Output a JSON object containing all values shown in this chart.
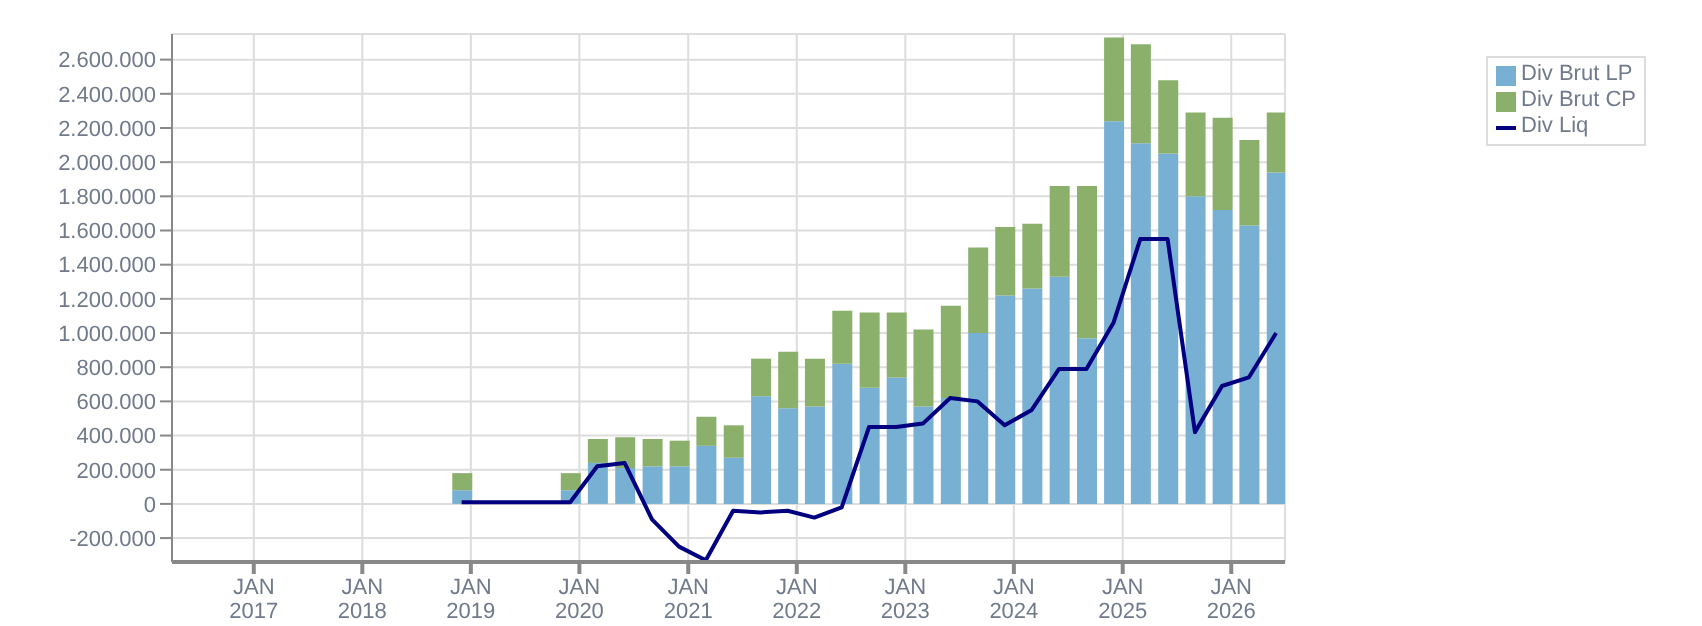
{
  "chart_data": {
    "type": "bar",
    "stacked": true,
    "x": [
      "2018-12",
      "2019-12",
      "2020-03",
      "2020-06",
      "2020-09",
      "2020-12",
      "2021-03",
      "2021-06",
      "2021-09",
      "2021-12",
      "2022-03",
      "2022-06",
      "2022-09",
      "2022-12",
      "2023-03",
      "2023-06",
      "2023-09",
      "2023-12",
      "2024-03",
      "2024-06",
      "2024-09",
      "2024-12",
      "2025-03",
      "2025-06",
      "2025-09",
      "2025-12",
      "2026-03",
      "2026-06"
    ],
    "series": [
      {
        "name": "Div Brut LP",
        "color": "#78b0d3",
        "values": [
          80000,
          80000,
          240000,
          210000,
          220000,
          220000,
          340000,
          270000,
          630000,
          560000,
          570000,
          820000,
          680000,
          740000,
          570000,
          620000,
          1000000,
          1220000,
          1260000,
          1330000,
          970000,
          2240000,
          2110000,
          2050000,
          1800000,
          1720000,
          1630000,
          1940000
        ]
      },
      {
        "name": "Div Brut CP",
        "color": "#8bb06b",
        "values": [
          100000,
          100000,
          140000,
          180000,
          160000,
          150000,
          170000,
          190000,
          220000,
          330000,
          280000,
          310000,
          440000,
          380000,
          450000,
          540000,
          500000,
          400000,
          380000,
          530000,
          890000,
          490000,
          580000,
          430000,
          490000,
          540000,
          500000,
          350000
        ]
      },
      {
        "name": "Div Liq",
        "type": "line",
        "color": "#000080",
        "values": [
          10000,
          10000,
          220000,
          240000,
          -90000,
          -250000,
          -330000,
          -40000,
          -50000,
          -40000,
          -80000,
          -20000,
          450000,
          450000,
          470000,
          620000,
          600000,
          460000,
          550000,
          790000,
          790000,
          1060000,
          1550000,
          1550000,
          420000,
          690000,
          740000,
          1000000
        ]
      }
    ],
    "xlim": [
      "2016-04",
      "2026-07"
    ],
    "xticks": [
      {
        "value": "2017-01",
        "label": "JAN\n2017"
      },
      {
        "value": "2018-01",
        "label": "JAN\n2018"
      },
      {
        "value": "2019-01",
        "label": "JAN\n2019"
      },
      {
        "value": "2020-01",
        "label": "JAN\n2020"
      },
      {
        "value": "2021-01",
        "label": "JAN\n2021"
      },
      {
        "value": "2022-01",
        "label": "JAN\n2022"
      },
      {
        "value": "2023-01",
        "label": "JAN\n2023"
      },
      {
        "value": "2024-01",
        "label": "JAN\n2024"
      },
      {
        "value": "2025-01",
        "label": "JAN\n2025"
      },
      {
        "value": "2026-01",
        "label": "JAN\n2026"
      }
    ],
    "ylim": [
      -340000,
      2750000
    ],
    "yticks": [
      {
        "value": -200000,
        "label": "-200.000"
      },
      {
        "value": 0,
        "label": "0"
      },
      {
        "value": 200000,
        "label": "200.000"
      },
      {
        "value": 400000,
        "label": "400.000"
      },
      {
        "value": 600000,
        "label": "600.000"
      },
      {
        "value": 800000,
        "label": "800.000"
      },
      {
        "value": 1000000,
        "label": "1.000.000"
      },
      {
        "value": 1200000,
        "label": "1.200.000"
      },
      {
        "value": 1400000,
        "label": "1.400.000"
      },
      {
        "value": 1600000,
        "label": "1.600.000"
      },
      {
        "value": 1800000,
        "label": "1.800.000"
      },
      {
        "value": 2000000,
        "label": "2.000.000"
      },
      {
        "value": 2200000,
        "label": "2.200.000"
      },
      {
        "value": 2400000,
        "label": "2.400.000"
      },
      {
        "value": 2600000,
        "label": "2.600.000"
      }
    ],
    "grid": true,
    "legend": "top right"
  }
}
